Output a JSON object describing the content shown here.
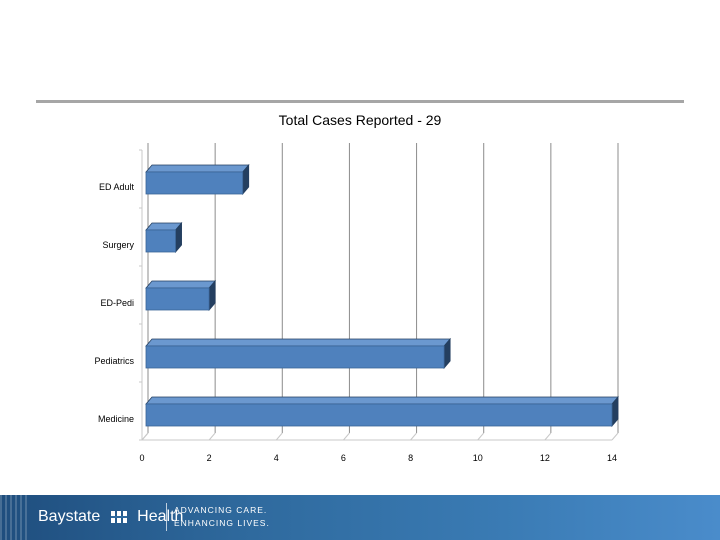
{
  "chart_data": {
    "type": "bar",
    "orientation": "horizontal",
    "title": "Total Cases Reported - 29",
    "categories": [
      "ED Adult",
      "Surgery",
      "ED-Pedi",
      "Pediatrics",
      "Medicine"
    ],
    "values": [
      3,
      1,
      2,
      9,
      14
    ],
    "xlim": [
      0,
      14
    ],
    "xticks": [
      0,
      2,
      4,
      6,
      8,
      10,
      12,
      14
    ],
    "grid": true,
    "style": "3d",
    "colors": {
      "bar": "#4f81bd",
      "bar_top": "#6b98cf",
      "bar_side": "#243f60",
      "grid": "#8c8c8c"
    }
  },
  "footer": {
    "brand_left": "Baystate",
    "brand_right": "Health",
    "tagline_1": "ADVANCING CARE.",
    "tagline_2": "ENHANCING LIVES.",
    "logo_icon": "baystate-logo-icon"
  }
}
